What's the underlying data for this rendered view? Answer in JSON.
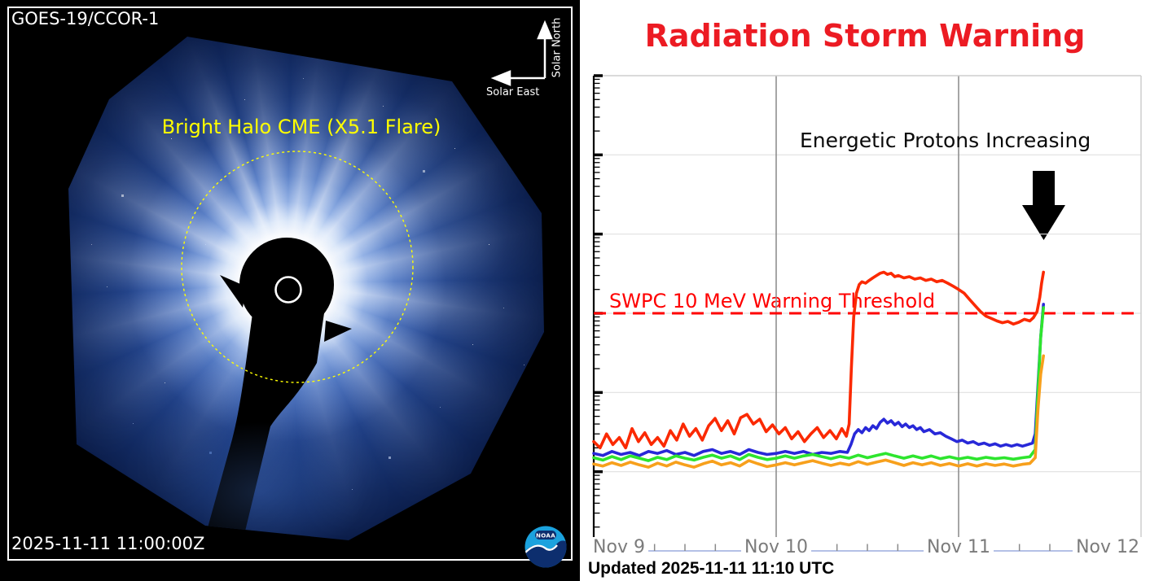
{
  "left_panel": {
    "title": "GOES-19/CCOR-1",
    "timestamp": "2025-11-11 11:00:00Z",
    "cme_label": "Bright Halo CME (X5.1 Flare)",
    "cme_label_color": "#ffff00",
    "compass": {
      "north": "Solar North",
      "east": "Solar East"
    },
    "noaa_logo_text": "NOAA"
  },
  "right_panel": {
    "title": "Radiation Storm Warning",
    "title_color": "#ec1b23",
    "annotation": "Energetic Protons Increasing",
    "threshold_label": "SWPC 10 MeV Warning Threshold",
    "threshold_color": "#ff0000",
    "updated": "Updated 2025-11-11 11:10 UTC"
  },
  "chart_data": {
    "type": "line",
    "title": "Radiation Storm Warning",
    "x_axis": {
      "labels": [
        "Nov 9",
        "Nov 10",
        "Nov 11",
        "Nov 12"
      ],
      "start_date": "Nov 9",
      "unit": "days",
      "range_days": [
        0,
        3
      ],
      "minor_tick_hours": 4
    },
    "y_axis": {
      "scale": "log",
      "decades": 6,
      "range": [
        0.01,
        10000
      ],
      "tick_labels_visible": false
    },
    "threshold": {
      "value": 10,
      "label": "SWPC 10 MeV Warning Threshold",
      "color": "#ff0000",
      "style": "dashed"
    },
    "legend_position": "none",
    "annotations": [
      "Energetic Protons Increasing",
      "down-arrow"
    ],
    "series": [
      {
        "name": "blue",
        "color": "#2828d8",
        "points": [
          [
            0.0,
            0.17
          ],
          [
            0.05,
            0.16
          ],
          [
            0.1,
            0.18
          ],
          [
            0.15,
            0.165
          ],
          [
            0.2,
            0.175
          ],
          [
            0.25,
            0.16
          ],
          [
            0.3,
            0.18
          ],
          [
            0.35,
            0.17
          ],
          [
            0.4,
            0.185
          ],
          [
            0.45,
            0.165
          ],
          [
            0.5,
            0.175
          ],
          [
            0.55,
            0.16
          ],
          [
            0.6,
            0.18
          ],
          [
            0.65,
            0.19
          ],
          [
            0.7,
            0.17
          ],
          [
            0.75,
            0.18
          ],
          [
            0.8,
            0.165
          ],
          [
            0.85,
            0.19
          ],
          [
            0.9,
            0.175
          ],
          [
            0.95,
            0.165
          ],
          [
            1.0,
            0.17
          ],
          [
            1.05,
            0.18
          ],
          [
            1.1,
            0.17
          ],
          [
            1.15,
            0.18
          ],
          [
            1.2,
            0.165
          ],
          [
            1.25,
            0.175
          ],
          [
            1.3,
            0.17
          ],
          [
            1.35,
            0.18
          ],
          [
            1.39,
            0.175
          ],
          [
            1.41,
            0.22
          ],
          [
            1.43,
            0.3
          ],
          [
            1.45,
            0.34
          ],
          [
            1.47,
            0.31
          ],
          [
            1.49,
            0.36
          ],
          [
            1.51,
            0.33
          ],
          [
            1.53,
            0.38
          ],
          [
            1.55,
            0.35
          ],
          [
            1.57,
            0.42
          ],
          [
            1.59,
            0.46
          ],
          [
            1.61,
            0.41
          ],
          [
            1.63,
            0.44
          ],
          [
            1.65,
            0.39
          ],
          [
            1.67,
            0.42
          ],
          [
            1.69,
            0.37
          ],
          [
            1.71,
            0.4
          ],
          [
            1.73,
            0.36
          ],
          [
            1.75,
            0.38
          ],
          [
            1.77,
            0.34
          ],
          [
            1.79,
            0.36
          ],
          [
            1.81,
            0.32
          ],
          [
            1.84,
            0.34
          ],
          [
            1.87,
            0.3
          ],
          [
            1.9,
            0.31
          ],
          [
            1.93,
            0.28
          ],
          [
            1.96,
            0.26
          ],
          [
            1.99,
            0.24
          ],
          [
            2.02,
            0.25
          ],
          [
            2.05,
            0.23
          ],
          [
            2.08,
            0.24
          ],
          [
            2.11,
            0.22
          ],
          [
            2.14,
            0.23
          ],
          [
            2.17,
            0.215
          ],
          [
            2.2,
            0.225
          ],
          [
            2.23,
            0.21
          ],
          [
            2.26,
            0.22
          ],
          [
            2.29,
            0.21
          ],
          [
            2.32,
            0.22
          ],
          [
            2.35,
            0.21
          ],
          [
            2.38,
            0.22
          ],
          [
            2.405,
            0.23
          ],
          [
            2.42,
            0.3
          ],
          [
            2.435,
            1.2
          ],
          [
            2.45,
            5.0
          ],
          [
            2.465,
            13.0
          ]
        ]
      },
      {
        "name": "green",
        "color": "#2ee52e",
        "points": [
          [
            0.0,
            0.15
          ],
          [
            0.05,
            0.14
          ],
          [
            0.1,
            0.155
          ],
          [
            0.15,
            0.142
          ],
          [
            0.2,
            0.158
          ],
          [
            0.25,
            0.148
          ],
          [
            0.3,
            0.138
          ],
          [
            0.35,
            0.152
          ],
          [
            0.4,
            0.142
          ],
          [
            0.45,
            0.158
          ],
          [
            0.5,
            0.148
          ],
          [
            0.55,
            0.14
          ],
          [
            0.6,
            0.152
          ],
          [
            0.65,
            0.162
          ],
          [
            0.7,
            0.148
          ],
          [
            0.75,
            0.158
          ],
          [
            0.8,
            0.142
          ],
          [
            0.85,
            0.165
          ],
          [
            0.9,
            0.152
          ],
          [
            0.95,
            0.142
          ],
          [
            1.0,
            0.148
          ],
          [
            1.05,
            0.158
          ],
          [
            1.1,
            0.148
          ],
          [
            1.15,
            0.158
          ],
          [
            1.2,
            0.165
          ],
          [
            1.25,
            0.155
          ],
          [
            1.3,
            0.146
          ],
          [
            1.35,
            0.156
          ],
          [
            1.4,
            0.148
          ],
          [
            1.45,
            0.162
          ],
          [
            1.5,
            0.15
          ],
          [
            1.55,
            0.16
          ],
          [
            1.6,
            0.17
          ],
          [
            1.65,
            0.158
          ],
          [
            1.7,
            0.148
          ],
          [
            1.75,
            0.158
          ],
          [
            1.8,
            0.148
          ],
          [
            1.85,
            0.158
          ],
          [
            1.9,
            0.146
          ],
          [
            1.95,
            0.154
          ],
          [
            2.0,
            0.145
          ],
          [
            2.05,
            0.152
          ],
          [
            2.1,
            0.144
          ],
          [
            2.15,
            0.152
          ],
          [
            2.2,
            0.146
          ],
          [
            2.25,
            0.15
          ],
          [
            2.3,
            0.144
          ],
          [
            2.35,
            0.15
          ],
          [
            2.39,
            0.154
          ],
          [
            2.42,
            0.19
          ],
          [
            2.435,
            1.0
          ],
          [
            2.45,
            5.0
          ],
          [
            2.465,
            11.8
          ]
        ]
      },
      {
        "name": "orange",
        "color": "#f7a01c",
        "points": [
          [
            0.0,
            0.125
          ],
          [
            0.05,
            0.118
          ],
          [
            0.1,
            0.13
          ],
          [
            0.15,
            0.12
          ],
          [
            0.2,
            0.132
          ],
          [
            0.25,
            0.122
          ],
          [
            0.3,
            0.114
          ],
          [
            0.35,
            0.128
          ],
          [
            0.4,
            0.118
          ],
          [
            0.45,
            0.132
          ],
          [
            0.5,
            0.122
          ],
          [
            0.55,
            0.114
          ],
          [
            0.6,
            0.126
          ],
          [
            0.65,
            0.136
          ],
          [
            0.7,
            0.122
          ],
          [
            0.75,
            0.13
          ],
          [
            0.8,
            0.118
          ],
          [
            0.85,
            0.138
          ],
          [
            0.9,
            0.126
          ],
          [
            0.95,
            0.116
          ],
          [
            1.0,
            0.122
          ],
          [
            1.05,
            0.13
          ],
          [
            1.1,
            0.122
          ],
          [
            1.15,
            0.13
          ],
          [
            1.2,
            0.138
          ],
          [
            1.25,
            0.128
          ],
          [
            1.3,
            0.12
          ],
          [
            1.35,
            0.128
          ],
          [
            1.4,
            0.122
          ],
          [
            1.45,
            0.134
          ],
          [
            1.5,
            0.124
          ],
          [
            1.55,
            0.132
          ],
          [
            1.6,
            0.14
          ],
          [
            1.65,
            0.13
          ],
          [
            1.7,
            0.12
          ],
          [
            1.75,
            0.13
          ],
          [
            1.8,
            0.122
          ],
          [
            1.85,
            0.13
          ],
          [
            1.9,
            0.12
          ],
          [
            1.95,
            0.127
          ],
          [
            2.0,
            0.118
          ],
          [
            2.05,
            0.126
          ],
          [
            2.1,
            0.118
          ],
          [
            2.15,
            0.126
          ],
          [
            2.2,
            0.12
          ],
          [
            2.25,
            0.125
          ],
          [
            2.3,
            0.118
          ],
          [
            2.35,
            0.124
          ],
          [
            2.39,
            0.127
          ],
          [
            2.42,
            0.15
          ],
          [
            2.435,
            0.6
          ],
          [
            2.45,
            1.7
          ],
          [
            2.465,
            2.9
          ]
        ]
      },
      {
        "name": "red",
        "color": "#fb2900",
        "points": [
          [
            0.0,
            0.24
          ],
          [
            0.035,
            0.2
          ],
          [
            0.07,
            0.3
          ],
          [
            0.105,
            0.22
          ],
          [
            0.14,
            0.27
          ],
          [
            0.175,
            0.2
          ],
          [
            0.21,
            0.35
          ],
          [
            0.245,
            0.24
          ],
          [
            0.28,
            0.31
          ],
          [
            0.315,
            0.22
          ],
          [
            0.35,
            0.27
          ],
          [
            0.385,
            0.21
          ],
          [
            0.42,
            0.33
          ],
          [
            0.455,
            0.25
          ],
          [
            0.49,
            0.4
          ],
          [
            0.525,
            0.28
          ],
          [
            0.56,
            0.35
          ],
          [
            0.595,
            0.25
          ],
          [
            0.63,
            0.38
          ],
          [
            0.665,
            0.47
          ],
          [
            0.7,
            0.33
          ],
          [
            0.735,
            0.44
          ],
          [
            0.77,
            0.3
          ],
          [
            0.805,
            0.48
          ],
          [
            0.84,
            0.53
          ],
          [
            0.875,
            0.4
          ],
          [
            0.91,
            0.46
          ],
          [
            0.945,
            0.32
          ],
          [
            0.98,
            0.39
          ],
          [
            1.015,
            0.3
          ],
          [
            1.05,
            0.36
          ],
          [
            1.085,
            0.26
          ],
          [
            1.12,
            0.32
          ],
          [
            1.155,
            0.24
          ],
          [
            1.19,
            0.3
          ],
          [
            1.225,
            0.36
          ],
          [
            1.26,
            0.27
          ],
          [
            1.295,
            0.33
          ],
          [
            1.33,
            0.26
          ],
          [
            1.36,
            0.35
          ],
          [
            1.385,
            0.28
          ],
          [
            1.4,
            0.4
          ],
          [
            1.412,
            2.0
          ],
          [
            1.425,
            9.0
          ],
          [
            1.44,
            18
          ],
          [
            1.455,
            23
          ],
          [
            1.47,
            25
          ],
          [
            1.49,
            24
          ],
          [
            1.51,
            26
          ],
          [
            1.53,
            28
          ],
          [
            1.55,
            30
          ],
          [
            1.57,
            32
          ],
          [
            1.59,
            33
          ],
          [
            1.61,
            31
          ],
          [
            1.63,
            32
          ],
          [
            1.65,
            29
          ],
          [
            1.67,
            30
          ],
          [
            1.7,
            28
          ],
          [
            1.73,
            29
          ],
          [
            1.76,
            27
          ],
          [
            1.79,
            28
          ],
          [
            1.82,
            26
          ],
          [
            1.85,
            27
          ],
          [
            1.88,
            25
          ],
          [
            1.91,
            26
          ],
          [
            1.94,
            24
          ],
          [
            1.97,
            22
          ],
          [
            2.0,
            20
          ],
          [
            2.03,
            18
          ],
          [
            2.06,
            15
          ],
          [
            2.09,
            12.5
          ],
          [
            2.12,
            10.5
          ],
          [
            2.15,
            9.2
          ],
          [
            2.18,
            8.6
          ],
          [
            2.21,
            8.0
          ],
          [
            2.24,
            7.6
          ],
          [
            2.27,
            7.9
          ],
          [
            2.3,
            7.3
          ],
          [
            2.33,
            7.7
          ],
          [
            2.36,
            8.4
          ],
          [
            2.39,
            8.0
          ],
          [
            2.41,
            8.8
          ],
          [
            2.43,
            10.5
          ],
          [
            2.445,
            16
          ],
          [
            2.455,
            24
          ],
          [
            2.465,
            33
          ]
        ]
      }
    ]
  }
}
